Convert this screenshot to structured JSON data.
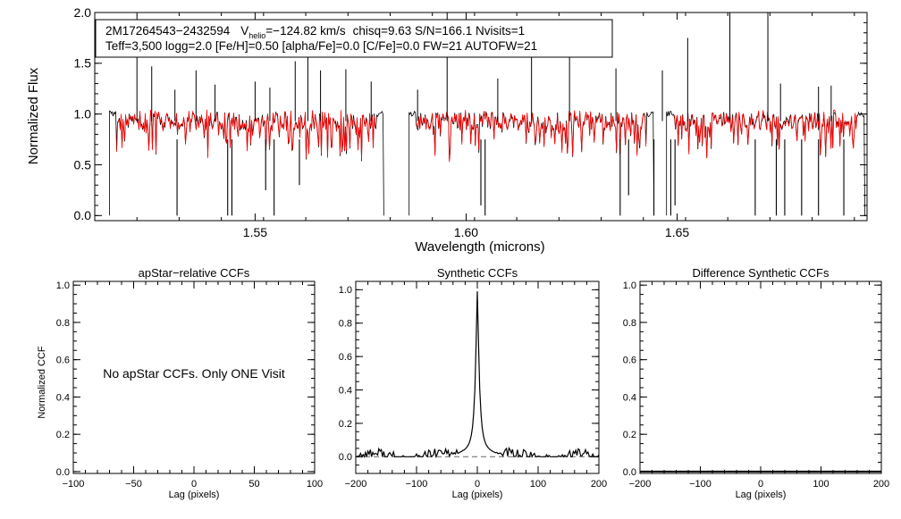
{
  "chart_data": [
    {
      "type": "line",
      "id": "spectrum",
      "xlabel": "Wavelength (microns)",
      "ylabel": "Normalized Flux",
      "xlim": [
        1.512,
        1.695
      ],
      "ylim": [
        -0.05,
        2.0
      ],
      "xticks": [
        1.55,
        1.6,
        1.65
      ],
      "xtick_labels": [
        "1.55",
        "1.60",
        "1.65"
      ],
      "yticks": [
        0.0,
        0.5,
        1.0,
        1.5,
        2.0
      ],
      "ytick_labels": [
        "0.0",
        "0.5",
        "1.0",
        "1.5",
        "2.0"
      ],
      "chips": [
        [
          1.5155,
          1.5805
        ],
        [
          1.5865,
          1.6445
        ],
        [
          1.6475,
          1.6945
        ]
      ],
      "continuum": 0.93,
      "series": [
        {
          "name": "observed spectrum",
          "color": "#000000"
        },
        {
          "name": "synthetic fit",
          "color": "#ff0000"
        }
      ],
      "emission_spikes": [
        {
          "x": 1.522,
          "y": 1.97
        },
        {
          "x": 1.5255,
          "y": 1.47
        },
        {
          "x": 1.531,
          "y": 1.24
        },
        {
          "x": 1.536,
          "y": 1.43
        },
        {
          "x": 1.5405,
          "y": 1.29
        },
        {
          "x": 1.55,
          "y": 1.32
        },
        {
          "x": 1.5535,
          "y": 1.26
        },
        {
          "x": 1.5595,
          "y": 1.52
        },
        {
          "x": 1.5625,
          "y": 1.87
        },
        {
          "x": 1.5655,
          "y": 1.43
        },
        {
          "x": 1.5715,
          "y": 1.44
        },
        {
          "x": 1.5775,
          "y": 1.32
        },
        {
          "x": 1.5885,
          "y": 1.24
        },
        {
          "x": 1.5955,
          "y": 2.0
        },
        {
          "x": 1.6075,
          "y": 1.35
        },
        {
          "x": 1.6155,
          "y": 1.58
        },
        {
          "x": 1.6245,
          "y": 1.69
        },
        {
          "x": 1.6355,
          "y": 1.45
        },
        {
          "x": 1.6465,
          "y": 1.43
        },
        {
          "x": 1.6525,
          "y": 1.75
        },
        {
          "x": 1.6625,
          "y": 2.0
        },
        {
          "x": 1.6715,
          "y": 2.0
        },
        {
          "x": 1.6745,
          "y": 1.3
        },
        {
          "x": 1.6835,
          "y": 1.27
        },
        {
          "x": 1.6865,
          "y": 1.28
        }
      ],
      "absorption_lines": [
        {
          "x": 1.5315,
          "y": 0.0
        },
        {
          "x": 1.5435,
          "y": 0.0
        },
        {
          "x": 1.5445,
          "y": 0.0
        },
        {
          "x": 1.5545,
          "y": 0.0
        },
        {
          "x": 1.5525,
          "y": 0.25
        },
        {
          "x": 1.5605,
          "y": 0.3
        },
        {
          "x": 1.6045,
          "y": 0.0
        },
        {
          "x": 1.6035,
          "y": 0.1
        },
        {
          "x": 1.6365,
          "y": 0.0
        },
        {
          "x": 1.6385,
          "y": 0.2
        },
        {
          "x": 1.6445,
          "y": 0.0
        },
        {
          "x": 1.6485,
          "y": 0.0
        },
        {
          "x": 1.6495,
          "y": 0.1
        },
        {
          "x": 1.6685,
          "y": 0.0
        },
        {
          "x": 1.6735,
          "y": 0.0
        },
        {
          "x": 1.6755,
          "y": 0.0
        },
        {
          "x": 1.6795,
          "y": 0.0
        },
        {
          "x": 1.6835,
          "y": 0.0
        },
        {
          "x": 1.6895,
          "y": 0.0
        }
      ],
      "annotation": {
        "object": "2M17264543−2432594",
        "vhelio_prefix": "V",
        "vhelio_sub": "helio",
        "vhelio_value": "=−124.82 km/s",
        "line1_rest": "chisq=9.63  S/N=166.1  Nvisits=1",
        "line2": "Teff=3,500 logg=2.0 [Fe/H]=0.50 [alpha/Fe]=0.0 [C/Fe]=0.0 FW=21 AUTOFW=21"
      }
    },
    {
      "type": "line",
      "id": "apstar-ccf",
      "title": "apStar−relative CCFs",
      "xlabel": "Lag (pixels)",
      "ylabel": "Normalized CCF",
      "xlim": [
        -100,
        100
      ],
      "ylim": [
        -0.01,
        1.02
      ],
      "xticks": [
        -100,
        -50,
        0,
        50,
        100
      ],
      "xtick_labels": [
        "−100",
        "−50",
        "0",
        "50",
        "100"
      ],
      "yticks": [
        0.0,
        0.2,
        0.4,
        0.6,
        0.8,
        1.0
      ],
      "ytick_labels": [
        "0.0",
        "0.2",
        "0.4",
        "0.6",
        "0.8",
        "1.0"
      ],
      "message": "No apStar CCFs.  Only ONE Visit",
      "series": []
    },
    {
      "type": "line",
      "id": "synthetic-ccf",
      "title": "Synthetic CCFs",
      "xlabel": "Lag (pixels)",
      "xlim": [
        -200,
        200
      ],
      "ylim": [
        -0.1,
        1.05
      ],
      "xticks": [
        -200,
        -100,
        0,
        100,
        200
      ],
      "xtick_labels": [
        "−200",
        "−100",
        "0",
        "100",
        "200"
      ],
      "yticks": [
        0.0,
        0.2,
        0.4,
        0.6,
        0.8,
        1.0
      ],
      "ytick_labels": [
        "0.0",
        "0.2",
        "0.4",
        "0.6",
        "0.8",
        "1.0"
      ],
      "baseline": 0.0,
      "peak": {
        "x": 0,
        "y": 0.99
      },
      "series": [
        {
          "name": "ccf",
          "color": "#000000"
        }
      ]
    },
    {
      "type": "line",
      "id": "difference-ccf",
      "title": "Difference Synthetic CCFs",
      "xlabel": "Lag (pixels)",
      "xlim": [
        -200,
        200
      ],
      "ylim": [
        -0.01,
        1.02
      ],
      "xticks": [
        -200,
        -100,
        0,
        100,
        200
      ],
      "xtick_labels": [
        "−200",
        "−100",
        "0",
        "100",
        "200"
      ],
      "yticks": [
        0.0,
        0.2,
        0.4,
        0.6,
        0.8,
        1.0
      ],
      "ytick_labels": [
        "0.0",
        "0.2",
        "0.4",
        "0.6",
        "0.8",
        "1.0"
      ],
      "flat_value": 0.0,
      "series": [
        {
          "name": "difference",
          "color": "#000000"
        }
      ]
    }
  ]
}
